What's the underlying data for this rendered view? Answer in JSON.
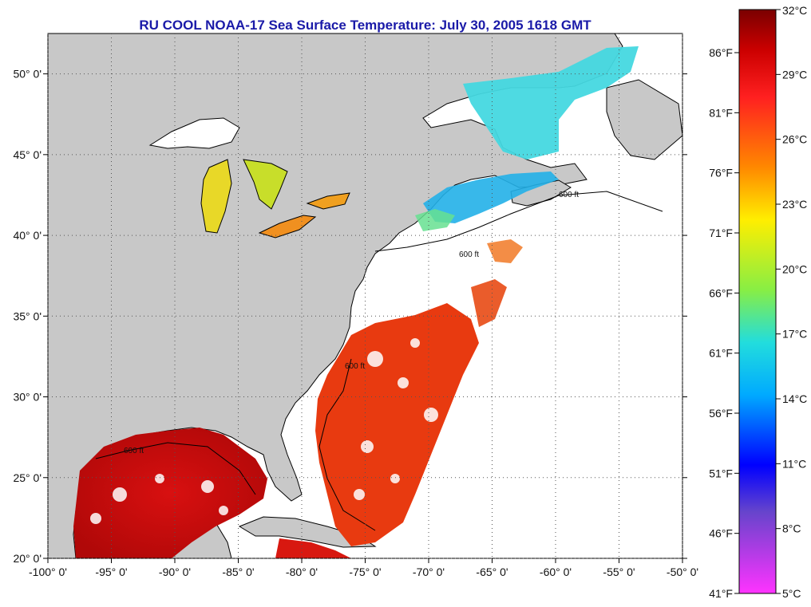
{
  "title": "RU COOL  NOAA-17  Sea Surface Temperature:  July 30, 2005 1618 GMT",
  "map": {
    "lon_range": [
      -100,
      -50
    ],
    "lat_range": [
      20,
      52.5
    ],
    "lon_ticks": [
      "-100° 0'",
      "-95° 0'",
      "-90° 0'",
      "-85° 0'",
      "-80° 0'",
      "-75° 0'",
      "-70° 0'",
      "-65° 0'",
      "-60° 0'",
      "-55° 0'",
      "-50° 0'"
    ],
    "lat_ticks": [
      "20° 0'",
      "25° 0'",
      "30° 0'",
      "35° 0'",
      "40° 0'",
      "45° 0'",
      "50° 0'"
    ],
    "contour_label": "600 ft",
    "colors": {
      "land": "#c8c8c8",
      "water_cloud": "#ffffff",
      "coast": "#000000"
    }
  },
  "colorbar": {
    "celsius": [
      "32°C",
      "29°C",
      "26°C",
      "23°C",
      "20°C",
      "17°C",
      "14°C",
      "11°C",
      "8°C",
      "5°C"
    ],
    "fahrenheit": [
      "86°F",
      "81°F",
      "76°F",
      "71°F",
      "66°F",
      "61°F",
      "56°F",
      "51°F",
      "46°F",
      "41°F"
    ],
    "range_c": [
      5,
      32
    ]
  }
}
